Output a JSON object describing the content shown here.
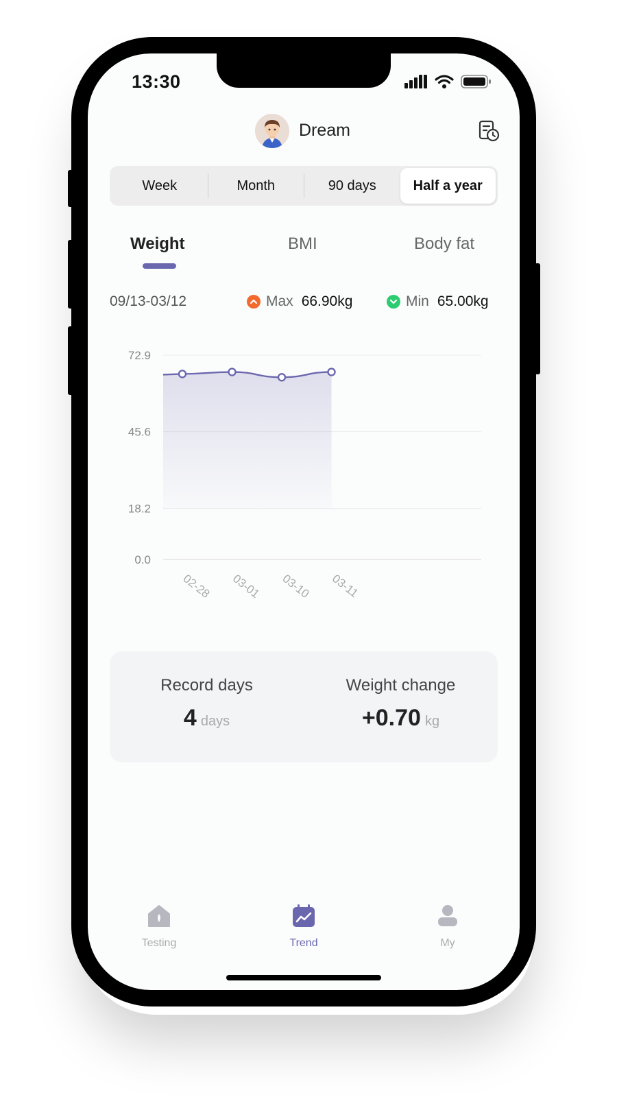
{
  "status": {
    "time": "13:30"
  },
  "header": {
    "user_name": "Dream",
    "history_icon": "history-report-icon"
  },
  "periods": [
    "Week",
    "Month",
    "90 days",
    "Half a year"
  ],
  "active_period": "Half a year",
  "metric_tabs": [
    "Weight",
    "BMI",
    "Body fat"
  ],
  "active_metric": "Weight",
  "range": {
    "dates": "09/13-03/12",
    "max_label": "Max",
    "max_value": "66.90kg",
    "min_label": "Min",
    "min_value": "65.00kg"
  },
  "chart_data": {
    "type": "area",
    "x": [
      "02-28",
      "03-01",
      "03-10",
      "03-11"
    ],
    "values": [
      66.2,
      66.9,
      65.0,
      66.9
    ],
    "yticks": [
      "72.9",
      "45.6",
      "18.2",
      "0.0"
    ],
    "ylim": [
      0,
      72.9
    ],
    "grid": true,
    "color": "#6b67ae"
  },
  "summary": {
    "record_days_label": "Record days",
    "record_days_value": "4",
    "record_days_unit": "days",
    "weight_change_label": "Weight change",
    "weight_change_value": "+0.70",
    "weight_change_unit": "kg"
  },
  "nav": [
    {
      "label": "Testing",
      "icon": "testing-icon"
    },
    {
      "label": "Trend",
      "icon": "trend-icon"
    },
    {
      "label": "My",
      "icon": "profile-icon"
    }
  ],
  "active_nav": "Trend",
  "colors": {
    "accent": "#6b67ae",
    "max": "#f26a2e",
    "min": "#2ecc71"
  }
}
